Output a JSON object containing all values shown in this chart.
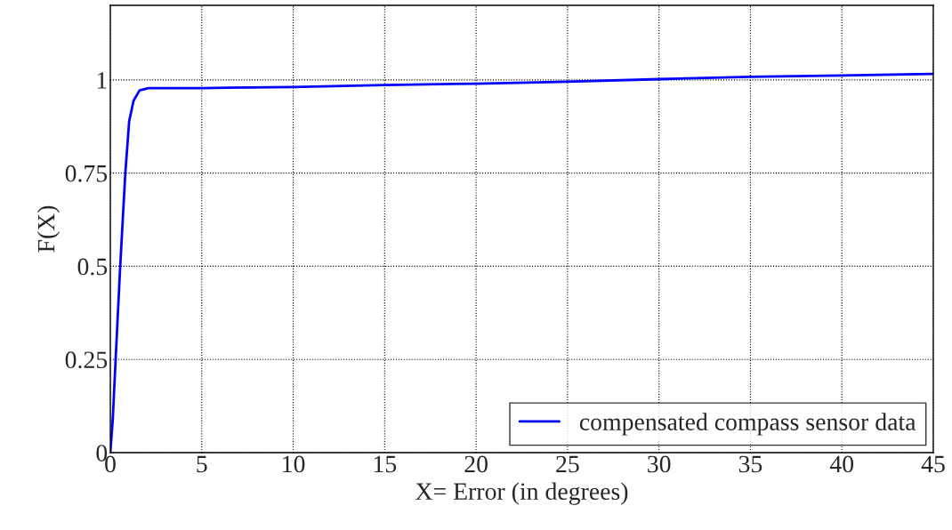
{
  "chart_data": {
    "type": "line",
    "xlabel": "X= Error (in degrees)",
    "ylabel": "F(X)",
    "xlim": [
      0,
      45
    ],
    "xticks": [
      0,
      5,
      10,
      15,
      20,
      25,
      30,
      35,
      40,
      45
    ],
    "ylim": [
      0,
      1.2
    ],
    "yticks": [
      0,
      0.25,
      0.5,
      0.75,
      1
    ],
    "grid": true,
    "legend": "bottom right",
    "line_style": "solid",
    "series": [
      {
        "name": "compensated compass sensor data",
        "color": "#0000ff",
        "x": [
          0,
          0.13,
          0.29,
          0.54,
          0.82,
          1.03,
          1.27,
          1.6,
          2.09,
          5,
          10,
          15,
          20,
          25,
          30,
          35,
          40,
          45
        ],
        "values": [
          0,
          0.086,
          0.25,
          0.5,
          0.75,
          0.889,
          0.944,
          0.972,
          0.978,
          0.978,
          0.981,
          0.986,
          0.99,
          0.995,
          1.002,
          1.008,
          1.012,
          1.016
        ]
      }
    ]
  }
}
